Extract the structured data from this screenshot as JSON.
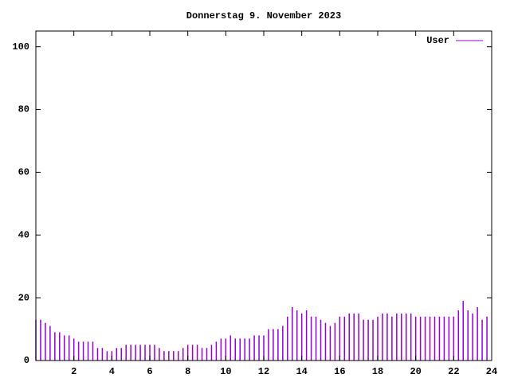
{
  "chart_data": {
    "type": "impulses",
    "title": "Donnerstag 9. November 2023",
    "x": [
      0,
      0.25,
      0.5,
      0.75,
      1,
      1.25,
      1.5,
      1.75,
      2,
      2.25,
      2.5,
      2.75,
      3,
      3.25,
      3.5,
      3.75,
      4,
      4.25,
      4.5,
      4.75,
      5,
      5.25,
      5.5,
      5.75,
      6,
      6.25,
      6.5,
      6.75,
      7,
      7.25,
      7.5,
      7.75,
      8,
      8.25,
      8.5,
      8.75,
      9,
      9.25,
      9.5,
      9.75,
      10,
      10.25,
      10.5,
      10.75,
      11,
      11.25,
      11.5,
      11.75,
      12,
      12.25,
      12.5,
      12.75,
      13,
      13.25,
      13.5,
      13.75,
      14,
      14.25,
      14.5,
      14.75,
      15,
      15.25,
      15.5,
      15.75,
      16,
      16.25,
      16.5,
      16.75,
      17,
      17.25,
      17.5,
      17.75,
      18,
      18.25,
      18.5,
      18.75,
      19,
      19.25,
      19.5,
      19.75,
      20,
      20.25,
      20.5,
      20.75,
      21,
      21.25,
      21.5,
      21.75,
      22,
      22.25,
      22.5,
      22.75,
      23,
      23.25,
      23.5,
      23.75
    ],
    "series": [
      {
        "name": "User",
        "color": "#9400d3",
        "values": [
          13,
          13,
          12,
          11,
          9,
          9,
          8,
          8,
          7,
          6,
          6,
          6,
          6,
          4,
          4,
          3,
          3,
          4,
          4,
          5,
          5,
          5,
          5,
          5,
          5,
          5,
          4,
          3,
          3,
          3,
          3,
          4,
          5,
          5,
          5,
          4,
          4,
          5,
          6,
          7,
          7,
          8,
          7,
          7,
          7,
          7,
          8,
          8,
          8,
          10,
          10,
          10,
          11,
          14,
          17,
          16,
          15,
          16,
          14,
          14,
          13,
          12,
          11,
          12,
          14,
          14,
          15,
          15,
          15,
          13,
          13,
          13,
          14,
          15,
          15,
          14,
          15,
          15,
          15,
          15,
          14,
          14,
          14,
          14,
          14,
          14,
          14,
          14,
          14,
          16,
          19,
          16,
          15,
          17,
          13,
          14
        ]
      }
    ],
    "xlim": [
      0,
      24
    ],
    "xticks": [
      2,
      4,
      6,
      8,
      10,
      12,
      14,
      16,
      18,
      20,
      22,
      24
    ],
    "ylim": [
      0,
      105
    ],
    "yticks": [
      0,
      20,
      40,
      60,
      80,
      100
    ],
    "legend": "top-right"
  }
}
